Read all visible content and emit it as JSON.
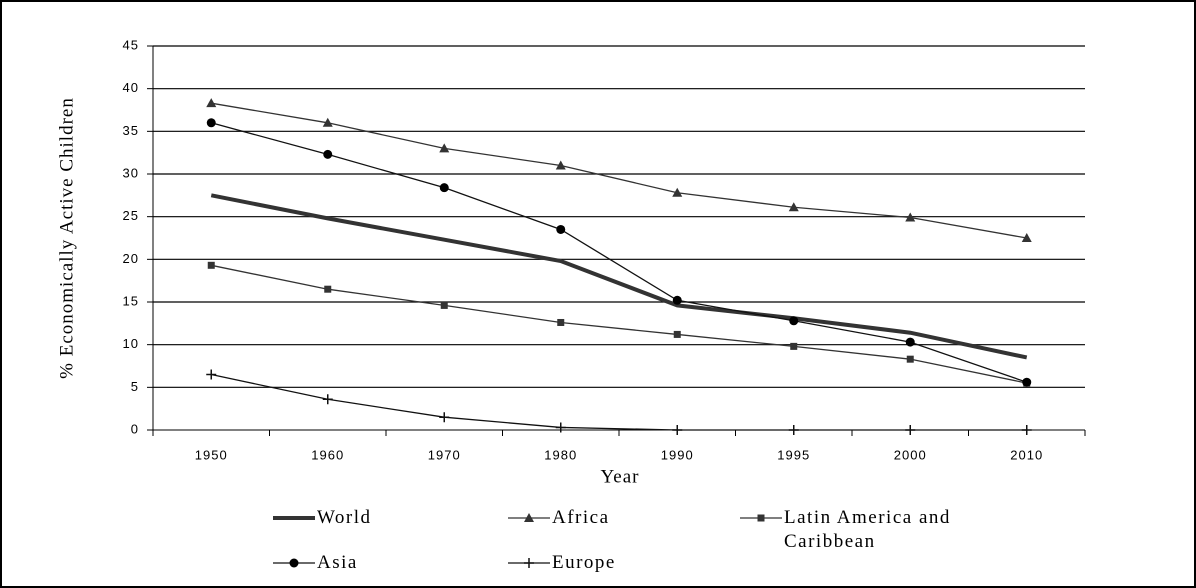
{
  "chart_data": {
    "type": "line",
    "y_label": "% Economically Active Children",
    "x_label": "Year",
    "categories": [
      "1950",
      "1960",
      "1970",
      "1980",
      "1990",
      "1995",
      "2000",
      "2010"
    ],
    "ylim": [
      0,
      45
    ],
    "yticks": [
      0,
      5,
      10,
      15,
      20,
      25,
      30,
      35,
      40,
      45
    ],
    "grid": true,
    "series": [
      {
        "name": "World",
        "color": "#333333",
        "marker": "none",
        "width": 4,
        "values": [
          27.5,
          24.8,
          22.3,
          19.8,
          14.6,
          13.1,
          11.4,
          8.5
        ]
      },
      {
        "name": "Africa",
        "color": "#333333",
        "marker": "triangle",
        "width": 1.3,
        "values": [
          38.3,
          36.0,
          33.0,
          31.0,
          27.8,
          26.1,
          24.9,
          22.5
        ]
      },
      {
        "name": "Latin America and Caribbean",
        "color": "#333333",
        "marker": "square",
        "width": 1.3,
        "values": [
          19.3,
          16.5,
          14.6,
          12.6,
          11.2,
          9.8,
          8.3,
          5.5
        ]
      },
      {
        "name": "Asia",
        "color": "#111111",
        "marker": "circle",
        "width": 1.3,
        "values": [
          36.0,
          32.3,
          28.4,
          23.5,
          15.2,
          12.8,
          10.3,
          5.6
        ]
      },
      {
        "name": "Europe",
        "color": "#111111",
        "marker": "plus",
        "width": 1.3,
        "values": [
          6.5,
          3.6,
          1.5,
          0.3,
          0,
          0,
          0,
          0
        ]
      }
    ]
  }
}
